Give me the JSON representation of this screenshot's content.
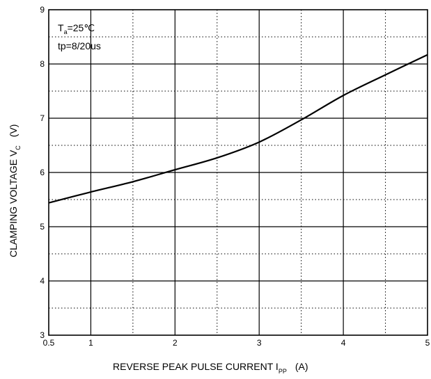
{
  "chart_data": {
    "type": "line",
    "xlim": [
      0.5,
      5
    ],
    "ylim": [
      3,
      9
    ],
    "x_ticks": [
      {
        "value": 0.5,
        "label": "0.5"
      },
      {
        "value": 1,
        "label": "1"
      },
      {
        "value": 2,
        "label": "2"
      },
      {
        "value": 3,
        "label": "3"
      },
      {
        "value": 4,
        "label": "4"
      },
      {
        "value": 5,
        "label": "5"
      }
    ],
    "x_minor_grid": [
      1.5,
      2.5,
      3.5,
      4.5
    ],
    "y_ticks": [
      {
        "value": 3,
        "label": "3"
      },
      {
        "value": 4,
        "label": "4"
      },
      {
        "value": 5,
        "label": "5"
      },
      {
        "value": 6,
        "label": "6"
      },
      {
        "value": 7,
        "label": "7"
      },
      {
        "value": 8,
        "label": "8"
      },
      {
        "value": 9,
        "label": "9"
      }
    ],
    "y_minor_grid": [
      3.5,
      4.5,
      5.5,
      6.5,
      7.5,
      8.5
    ],
    "grid": true,
    "xlabel": {
      "main": "REVERSE PEAK PULSE CURRENT  I",
      "sub": "PP",
      "unit": "(A)"
    },
    "ylabel": {
      "main": "CLAMPING VOLTAGE  V",
      "sub": "C",
      "unit": "(V)"
    },
    "annotations": {
      "line1_main": "T",
      "line1_sub": "a",
      "line1_rest": "=25℃",
      "line2": "tp=8/20us"
    },
    "series": [
      {
        "x": [
          0.5,
          1,
          1.5,
          2,
          2.5,
          3,
          3.5,
          4,
          4.5,
          5
        ],
        "y": [
          5.44,
          5.64,
          5.83,
          6.05,
          6.27,
          6.56,
          6.97,
          7.42,
          7.8,
          8.17
        ]
      }
    ]
  }
}
